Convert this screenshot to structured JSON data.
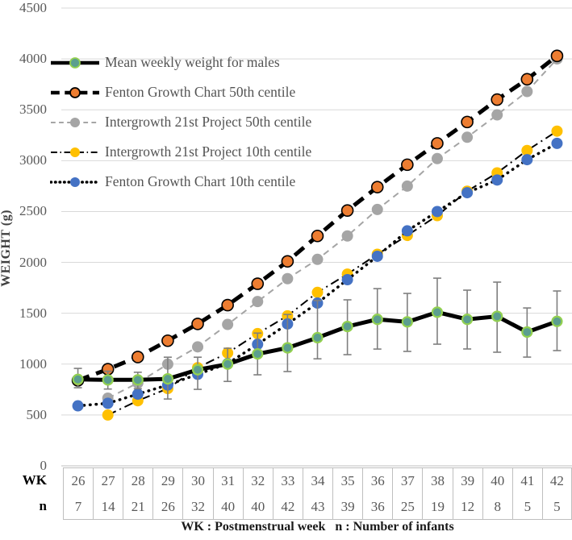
{
  "figure": {
    "ylabel": "WEIGHT (g)",
    "footnote": "WK : Postmenstrual week   n : Number of infants"
  },
  "chart_data": {
    "type": "line",
    "title": "",
    "xlabel": "WK : Postmenstrual week",
    "ylabel": "WEIGHT (g)",
    "ylim": [
      0,
      4500
    ],
    "ytick_step": 500,
    "grid": "horizontal",
    "legend_position": "top-left-inside",
    "gridline_color": "#D9D9D9",
    "axis_line_color": "#BFBFBF",
    "error_bar_color": "#7F7F7F",
    "text_color": "#595959",
    "x_weeks": [
      26,
      27,
      28,
      29,
      30,
      31,
      32,
      33,
      34,
      35,
      36,
      37,
      38,
      39,
      40,
      41,
      42
    ],
    "series": [
      {
        "name": "Mean weekly weight for males",
        "style": "mean",
        "line_color": "#000000",
        "marker_color": "#5B9E8F",
        "marker_ring": "#92D050",
        "values": [
          850,
          845,
          845,
          855,
          945,
          1000,
          1100,
          1160,
          1260,
          1370,
          1440,
          1415,
          1510,
          1440,
          1470,
          1315,
          1420
        ],
        "error_low": [
          768,
          755,
          758,
          657,
          752,
          830,
          895,
          927,
          1052,
          1093,
          1148,
          1125,
          1196,
          1149,
          1117,
          1069,
          1133
        ],
        "error_high": [
          958,
          930,
          920,
          1068,
          1068,
          1156,
          1305,
          1488,
          1625,
          1632,
          1742,
          1695,
          1845,
          1727,
          1806,
          1552,
          1719
        ]
      },
      {
        "name": "Fenton Growth Chart 50th centile",
        "style": "heavy",
        "line_color": "#000000",
        "marker_color": "#ED7D31",
        "marker_ring": "#000000",
        "values": [
          840,
          950,
          1070,
          1230,
          1395,
          1580,
          1790,
          2010,
          2260,
          2510,
          2740,
          2960,
          3170,
          3380,
          3600,
          3800,
          4030
        ]
      },
      {
        "name": "Intergrowth 21st Project 50th centile",
        "style": "dash",
        "line_color": "#A5A5A5",
        "marker_color": "#A5A5A5",
        "marker_ring": null,
        "values": [
          null,
          665,
          815,
          1000,
          1170,
          1390,
          1615,
          1840,
          2030,
          2260,
          2520,
          2750,
          3020,
          3230,
          3450,
          3680,
          4000
        ]
      },
      {
        "name": "Intergrowth 21st Project 10th centile",
        "style": "dashdot",
        "line_color": "#000000",
        "marker_color": "#FFC000",
        "marker_ring": null,
        "values": [
          null,
          500,
          640,
          760,
          965,
          1110,
          1300,
          1475,
          1705,
          1885,
          2080,
          2265,
          2460,
          2700,
          2880,
          3100,
          3290
        ]
      },
      {
        "name": "Fenton Growth Chart 10th centile",
        "style": "dot",
        "line_color": "#000000",
        "marker_color": "#4472C4",
        "marker_ring": null,
        "values": [
          590,
          615,
          705,
          795,
          900,
          1005,
          1195,
          1395,
          1600,
          1830,
          2060,
          2310,
          2500,
          2685,
          2810,
          3010,
          3170
        ]
      }
    ],
    "table": {
      "row_labels": [
        "WK",
        "n"
      ],
      "weeks": [
        26,
        27,
        28,
        29,
        30,
        31,
        32,
        33,
        34,
        35,
        36,
        37,
        38,
        39,
        40,
        41,
        42
      ],
      "n": [
        7,
        14,
        21,
        26,
        32,
        40,
        40,
        42,
        43,
        39,
        36,
        25,
        19,
        12,
        8,
        5,
        5
      ]
    }
  }
}
